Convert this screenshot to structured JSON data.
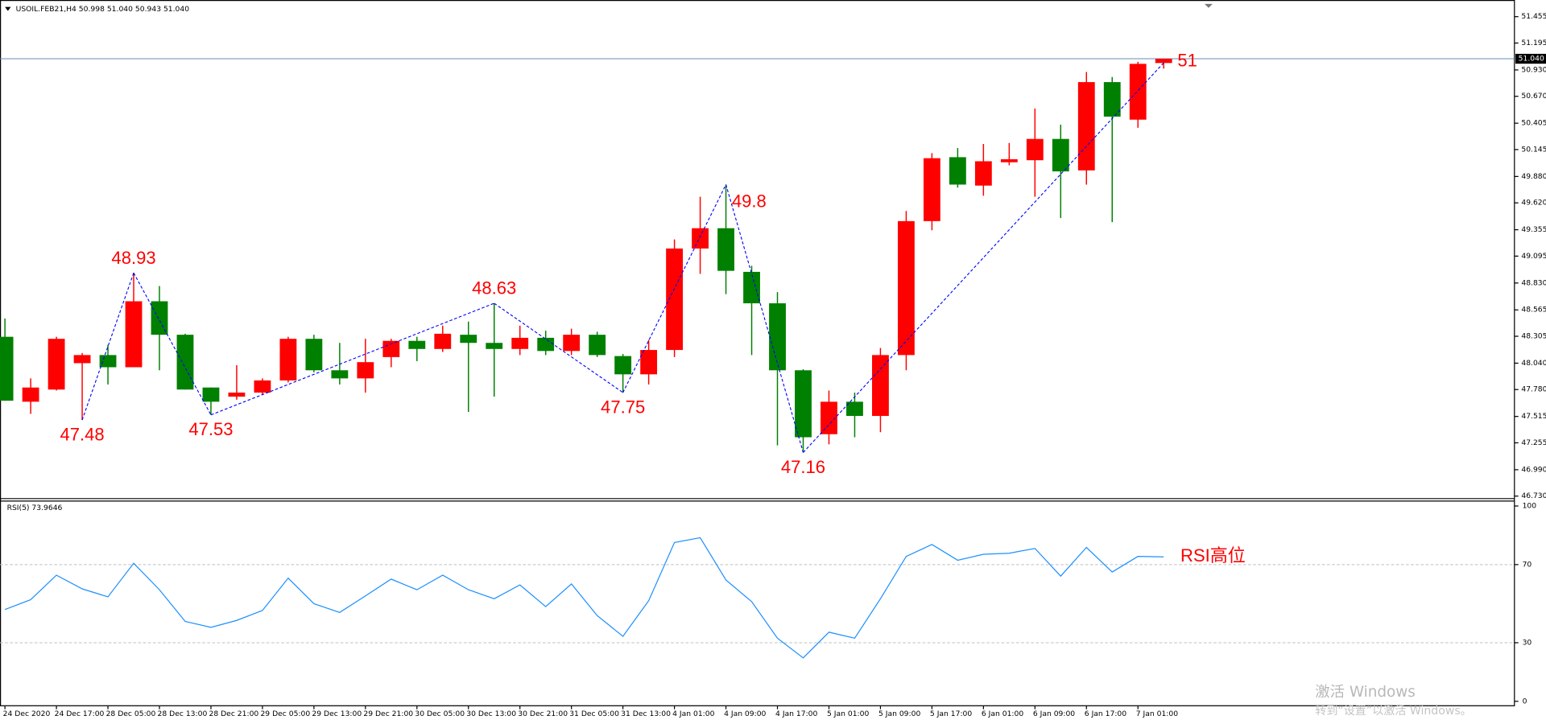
{
  "chart_data": [
    {
      "type": "candlestick",
      "title": "USOIL.FEB21,H4  50.998 51.040 50.943 51.040",
      "categories": [
        "24 Dec 2020",
        null,
        "24 Dec 17:00",
        null,
        "28 Dec 05:00",
        null,
        "28 Dec 13:00",
        null,
        "28 Dec 21:00",
        null,
        "29 Dec 05:00",
        null,
        "29 Dec 13:00",
        null,
        "29 Dec 21:00",
        null,
        "30 Dec 05:00",
        null,
        "30 Dec 13:00",
        null,
        "30 Dec 21:00",
        null,
        "31 Dec 05:00",
        null,
        "31 Dec 13:00",
        null,
        "4 Jan 01:00",
        null,
        "4 Jan 09:00",
        null,
        "4 Jan 17:00",
        null,
        "5 Jan 01:00",
        null,
        "5 Jan 09:00",
        null,
        "5 Jan 17:00",
        null,
        "6 Jan 01:00",
        null,
        "6 Jan 09:00",
        null,
        "6 Jan 17:00",
        null,
        "7 Jan 01:00",
        null
      ],
      "open": [
        48.3,
        47.66,
        47.78,
        48.04,
        48.12,
        48.0,
        48.65,
        48.32,
        47.8,
        47.71,
        47.75,
        47.87,
        48.28,
        47.97,
        47.89,
        48.1,
        48.26,
        48.18,
        48.32,
        48.24,
        48.18,
        48.29,
        48.16,
        48.32,
        48.11,
        47.93,
        48.17,
        49.17,
        49.37,
        48.94,
        48.63,
        47.97,
        47.34,
        47.66,
        47.52,
        48.12,
        49.44,
        50.07,
        49.79,
        50.02,
        50.04,
        50.25,
        49.94,
        50.81,
        50.44,
        50.998
      ],
      "high": [
        48.48,
        47.89,
        48.3,
        48.14,
        48.22,
        48.93,
        48.8,
        48.33,
        47.8,
        48.02,
        47.89,
        48.3,
        48.32,
        48.24,
        48.28,
        48.28,
        48.3,
        48.41,
        48.45,
        48.63,
        48.41,
        48.36,
        48.38,
        48.35,
        48.13,
        48.27,
        49.26,
        49.68,
        49.8,
        49.0,
        48.74,
        47.98,
        47.77,
        47.75,
        48.19,
        49.54,
        50.11,
        50.16,
        50.2,
        50.21,
        50.55,
        50.39,
        50.91,
        50.86,
        51.01,
        51.04
      ],
      "low": [
        47.67,
        47.54,
        47.77,
        47.48,
        47.83,
        48.0,
        47.97,
        47.78,
        47.53,
        47.68,
        47.73,
        47.85,
        47.95,
        47.83,
        47.75,
        48.0,
        48.06,
        48.15,
        47.56,
        47.71,
        48.12,
        48.12,
        48.12,
        48.1,
        47.75,
        47.83,
        48.1,
        48.92,
        48.72,
        48.12,
        47.23,
        47.16,
        47.24,
        47.31,
        47.36,
        47.97,
        49.35,
        49.77,
        49.69,
        49.99,
        49.68,
        49.47,
        49.8,
        49.43,
        50.36,
        50.943
      ],
      "close": [
        47.67,
        47.8,
        48.28,
        48.12,
        48.0,
        48.65,
        48.32,
        47.78,
        47.66,
        47.75,
        47.87,
        48.28,
        47.97,
        47.89,
        48.05,
        48.26,
        48.18,
        48.33,
        48.24,
        48.18,
        48.29,
        48.16,
        48.32,
        48.12,
        47.93,
        48.17,
        49.17,
        49.37,
        48.95,
        48.63,
        47.97,
        47.31,
        47.66,
        47.52,
        48.12,
        49.44,
        50.06,
        49.8,
        50.03,
        50.05,
        50.25,
        49.93,
        50.81,
        50.47,
        50.99,
        51.04
      ],
      "up_color": "#ff0000",
      "down_color": "#008000",
      "zigzag": {
        "color": "#0000ff",
        "values": [
          null,
          null,
          null,
          47.48,
          null,
          48.93,
          null,
          null,
          47.53,
          null,
          null,
          null,
          null,
          null,
          null,
          null,
          null,
          null,
          null,
          48.63,
          null,
          null,
          null,
          null,
          47.75,
          null,
          null,
          null,
          49.8,
          null,
          null,
          47.16,
          null,
          null,
          null,
          null,
          null,
          null,
          null,
          null,
          null,
          null,
          null,
          null,
          null,
          51
        ]
      },
      "price_line": {
        "value": 51.04,
        "label": "51.040",
        "color": "#6a8fb5"
      },
      "ylim": [
        46.71,
        51.59
      ],
      "yticks": [
        51.455,
        51.195,
        {
          "value": 50.93,
          "label": "50.930"
        },
        {
          "value": 50.67,
          "label": "50.670"
        },
        50.405,
        50.145,
        {
          "value": 49.88,
          "label": "49.880"
        },
        {
          "value": 49.62,
          "label": "49.620"
        },
        49.355,
        49.095,
        {
          "value": 48.83,
          "label": "48.830"
        },
        48.565,
        48.305,
        {
          "value": 48.04,
          "label": "48.040"
        },
        {
          "value": 47.78,
          "label": "47.780"
        },
        47.515,
        47.255,
        {
          "value": 46.99,
          "label": "46.990"
        },
        {
          "value": 46.73,
          "label": "46.730"
        }
      ]
    },
    {
      "type": "line",
      "title": "RSI(5) 73.9646",
      "values": [
        47.0,
        52.0,
        64.6,
        57.6,
        53.5,
        70.7,
        57.1,
        40.9,
        37.9,
        41.4,
        46.5,
        63.1,
        50.0,
        45.5,
        54.0,
        62.6,
        57.1,
        64.6,
        57.1,
        52.5,
        59.6,
        48.5,
        60.1,
        43.9,
        33.3,
        51.5,
        81.3,
        83.8,
        62.1,
        51.0,
        32.3,
        22.2,
        35.4,
        32.3,
        52.5,
        74.2,
        80.3,
        72.2,
        75.3,
        75.8,
        78.3,
        64.1,
        78.8,
        66.2,
        74.2,
        73.9646
      ],
      "color": "#1e90ff",
      "annotation": "RSI高位",
      "ylim": [
        0,
        100
      ],
      "yticks": [
        100,
        70,
        30,
        0
      ],
      "grid": true
    }
  ],
  "watermark": {
    "title": "激活 Windows",
    "subtitle": "转到“设置”以激活 Windows。"
  }
}
